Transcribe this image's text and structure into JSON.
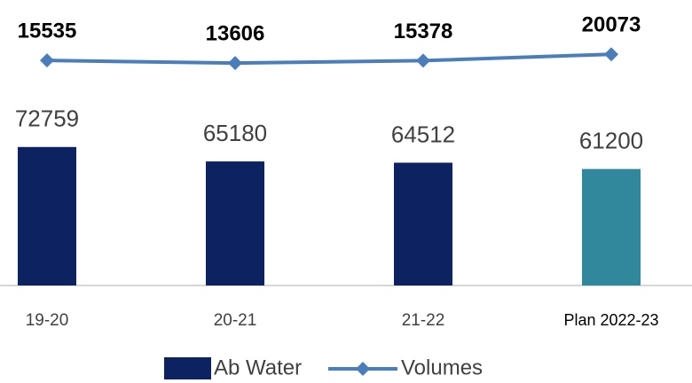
{
  "chart_data": {
    "type": "bar_line",
    "categories": [
      "19-20",
      "20-21",
      "21-22",
      "Plan 2022-23"
    ],
    "series": [
      {
        "name": "Ab Water",
        "type": "bar",
        "color": "#0c2261",
        "colors": [
          "#0c2261",
          "#0c2261",
          "#0c2261",
          "#31879b"
        ],
        "values": [
          72759,
          65180,
          64512,
          61200
        ]
      },
      {
        "name": "Volumes",
        "type": "line",
        "axis": "y2",
        "color": "#4a7ebb",
        "values": [
          15535,
          13606,
          15378,
          20073
        ]
      }
    ],
    "ylim": [
      0,
      150000
    ],
    "y2lim": [
      -150000,
      60000
    ],
    "grid": false
  }
}
